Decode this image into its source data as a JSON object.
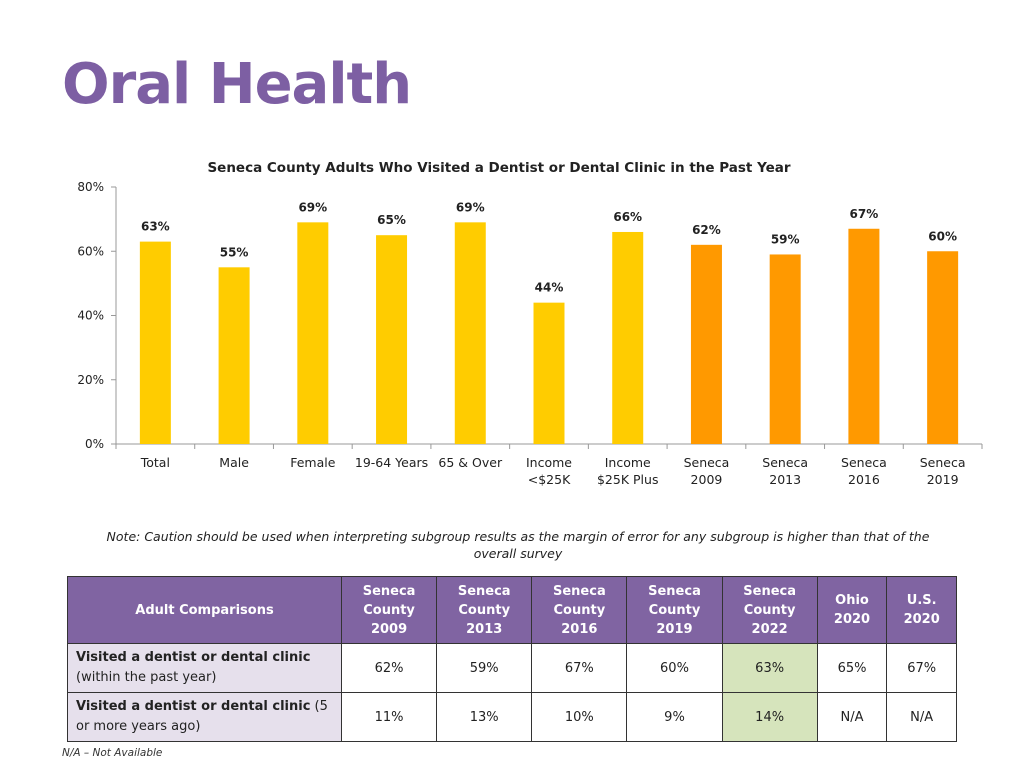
{
  "page": {
    "title": "Oral Health"
  },
  "chart_data": {
    "type": "bar",
    "title": "Seneca County Adults Who Visited a Dentist or Dental Clinic in the Past Year",
    "categories": [
      [
        "Total"
      ],
      [
        "Male"
      ],
      [
        "Female"
      ],
      [
        "19-64 Years"
      ],
      [
        "65 & Over"
      ],
      [
        "Income",
        "<$25K"
      ],
      [
        "Income",
        "$25K Plus"
      ],
      [
        "Seneca",
        "2009"
      ],
      [
        "Seneca",
        "2013"
      ],
      [
        "Seneca",
        "2016"
      ],
      [
        "Seneca",
        "2019"
      ]
    ],
    "values": [
      63,
      55,
      69,
      65,
      69,
      44,
      66,
      62,
      59,
      67,
      60
    ],
    "value_labels": [
      "63%",
      "55%",
      "69%",
      "65%",
      "69%",
      "44%",
      "66%",
      "62%",
      "59%",
      "67%",
      "60%"
    ],
    "bar_colors": [
      "#ffcc00",
      "#ffcc00",
      "#ffcc00",
      "#ffcc00",
      "#ffcc00",
      "#ffcc00",
      "#ffcc00",
      "#ff9900",
      "#ff9900",
      "#ff9900",
      "#ff9900"
    ],
    "y_ticks": [
      0,
      20,
      40,
      60,
      80
    ],
    "y_tick_labels": [
      "0%",
      "20%",
      "40%",
      "60%",
      "80%"
    ],
    "ylim": [
      0,
      80
    ],
    "xlabel": "",
    "ylabel": "",
    "grid": false
  },
  "note": "Note: Caution should be used when interpreting subgroup results as the margin of error for any subgroup is higher than that of the overall survey",
  "table": {
    "row_header": "Adult Comparisons",
    "columns": [
      [
        "Seneca",
        "County",
        "2009"
      ],
      [
        "Seneca",
        "County",
        "2013"
      ],
      [
        "Seneca",
        "County",
        "2016"
      ],
      [
        "Seneca",
        "County",
        "2019"
      ],
      [
        "Seneca",
        "County",
        "2022"
      ],
      [
        "Ohio",
        "2020"
      ],
      [
        "U.S.",
        "2020"
      ]
    ],
    "rows": [
      {
        "label_bold": "Visited a dentist or dental clinic",
        "label_rest": " (within the past year)",
        "values": [
          "62%",
          "59%",
          "67%",
          "60%",
          "63%",
          "65%",
          "67%"
        ]
      },
      {
        "label_bold": "Visited a dentist or dental clinic",
        "label_rest": " (5 or more years ago)",
        "values": [
          "11%",
          "13%",
          "10%",
          "9%",
          "14%",
          "N/A",
          "N/A"
        ]
      }
    ],
    "highlight_color": "#d6e4bc"
  },
  "footnote": "N/A – Not Available"
}
